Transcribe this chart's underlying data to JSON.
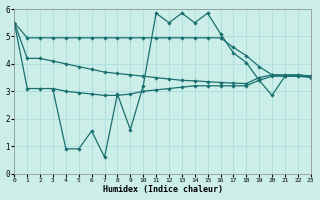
{
  "xlabel": "Humidex (Indice chaleur)",
  "bg_color": "#cceee8",
  "line_color": "#1a7070",
  "grid_color": "#aadddd",
  "xlim": [
    0,
    23
  ],
  "ylim": [
    0,
    6
  ],
  "xticks": [
    0,
    1,
    2,
    3,
    4,
    5,
    6,
    7,
    8,
    9,
    10,
    11,
    12,
    13,
    14,
    15,
    16,
    17,
    18,
    19,
    20,
    21,
    22,
    23
  ],
  "yticks": [
    0,
    1,
    2,
    3,
    4,
    5,
    6
  ],
  "lineA_x": [
    0,
    1,
    2,
    3,
    4,
    5,
    6,
    7,
    8,
    9,
    10,
    11,
    12,
    13,
    14,
    15,
    16,
    17,
    18,
    19,
    20,
    21,
    22,
    23
  ],
  "lineA_y": [
    5.5,
    4.95,
    4.95,
    4.95,
    4.95,
    4.95,
    4.95,
    4.95,
    4.95,
    4.95,
    4.95,
    4.95,
    4.95,
    4.95,
    4.95,
    4.95,
    4.95,
    4.6,
    4.3,
    3.9,
    3.6,
    3.55,
    3.55,
    3.55
  ],
  "lineB_x": [
    0,
    1,
    2,
    3,
    4,
    5,
    6,
    7,
    8,
    9,
    10,
    11,
    12,
    13,
    14,
    15,
    16,
    17,
    18,
    19,
    20,
    21,
    22,
    23
  ],
  "lineB_y": [
    5.5,
    4.2,
    4.2,
    4.1,
    4.0,
    3.9,
    3.8,
    3.7,
    3.65,
    3.6,
    3.55,
    3.5,
    3.45,
    3.4,
    3.38,
    3.35,
    3.32,
    3.3,
    3.28,
    3.5,
    3.6,
    3.6,
    3.6,
    3.55
  ],
  "lineC_x": [
    0,
    1,
    2,
    3,
    4,
    5,
    6,
    7,
    8,
    9,
    10,
    11,
    12,
    13,
    14,
    15,
    16,
    17,
    18,
    19,
    20,
    21,
    22,
    23
  ],
  "lineC_y": [
    5.5,
    3.1,
    3.1,
    3.1,
    3.0,
    2.95,
    2.9,
    2.85,
    2.85,
    2.9,
    3.0,
    3.05,
    3.1,
    3.15,
    3.2,
    3.2,
    3.2,
    3.2,
    3.2,
    3.4,
    3.55,
    3.55,
    3.55,
    3.5
  ],
  "lineD_x": [
    3,
    4,
    5,
    6,
    7,
    8,
    9,
    10,
    11,
    12,
    13,
    14,
    15,
    16,
    17,
    18,
    19,
    20,
    21,
    22,
    23
  ],
  "lineD_y": [
    3.05,
    0.9,
    0.9,
    1.55,
    0.6,
    2.9,
    1.6,
    3.2,
    5.85,
    5.5,
    5.85,
    5.5,
    5.85,
    5.1,
    4.4,
    4.05,
    3.4,
    2.85,
    3.55,
    3.6,
    3.55
  ]
}
